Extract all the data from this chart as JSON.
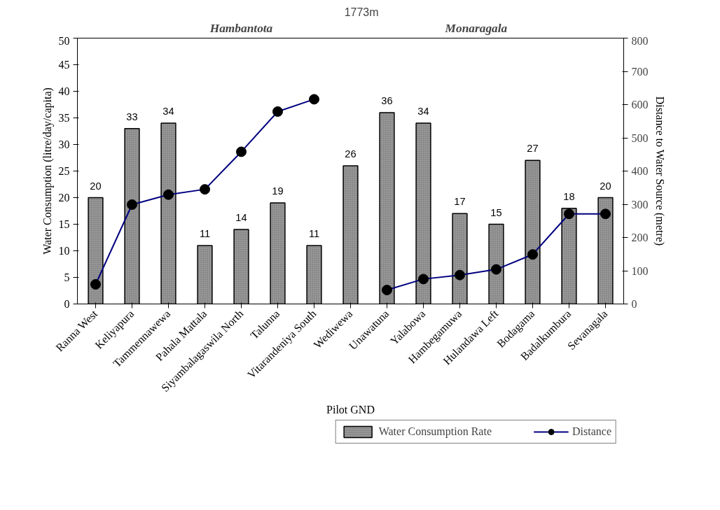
{
  "chart_data": {
    "type": "bar",
    "xlabel": "Pilot GND",
    "ylabel": "Water Consumption (litre/day/capita)",
    "y2label": "Distance to Water Source (metre)",
    "categories": [
      "Ranna West",
      "Keliyapura",
      "Tammennawewa",
      "Pahala Mattala",
      "Siyambalagaswila North",
      "Talunna",
      "Vitarandeniya South",
      "Wediwewa",
      "Unawatuna",
      "Yalabowa",
      "Hambegamuwa",
      "Hulandawa Left",
      "Bodagama",
      "Badalkumbura",
      "Sevanagala"
    ],
    "series": [
      {
        "name": "Water Consumption Rate",
        "color": "#999999",
        "values": [
          20,
          33,
          34,
          11,
          14,
          19,
          11,
          26,
          36,
          34,
          17,
          15,
          27,
          18,
          20
        ],
        "data_labels": true
      },
      {
        "name": "Distance",
        "type": "line",
        "axis": "y2",
        "color": "#000080",
        "marker": "circle",
        "values": [
          59,
          299,
          329,
          345,
          458,
          579,
          616,
          null,
          42,
          75,
          87,
          104,
          149,
          271,
          271
        ]
      }
    ],
    "ylim": [
      0,
      50
    ],
    "yticks": [
      0,
      5,
      10,
      15,
      20,
      25,
      30,
      35,
      40,
      45,
      50
    ],
    "y2lim": [
      0,
      800
    ],
    "y2ticks": [
      0,
      100,
      200,
      300,
      400,
      500,
      600,
      700,
      800
    ],
    "annotations": [
      "Hambantota",
      "1773m",
      "Monaragala"
    ],
    "grid": false,
    "legend": "bottom"
  }
}
